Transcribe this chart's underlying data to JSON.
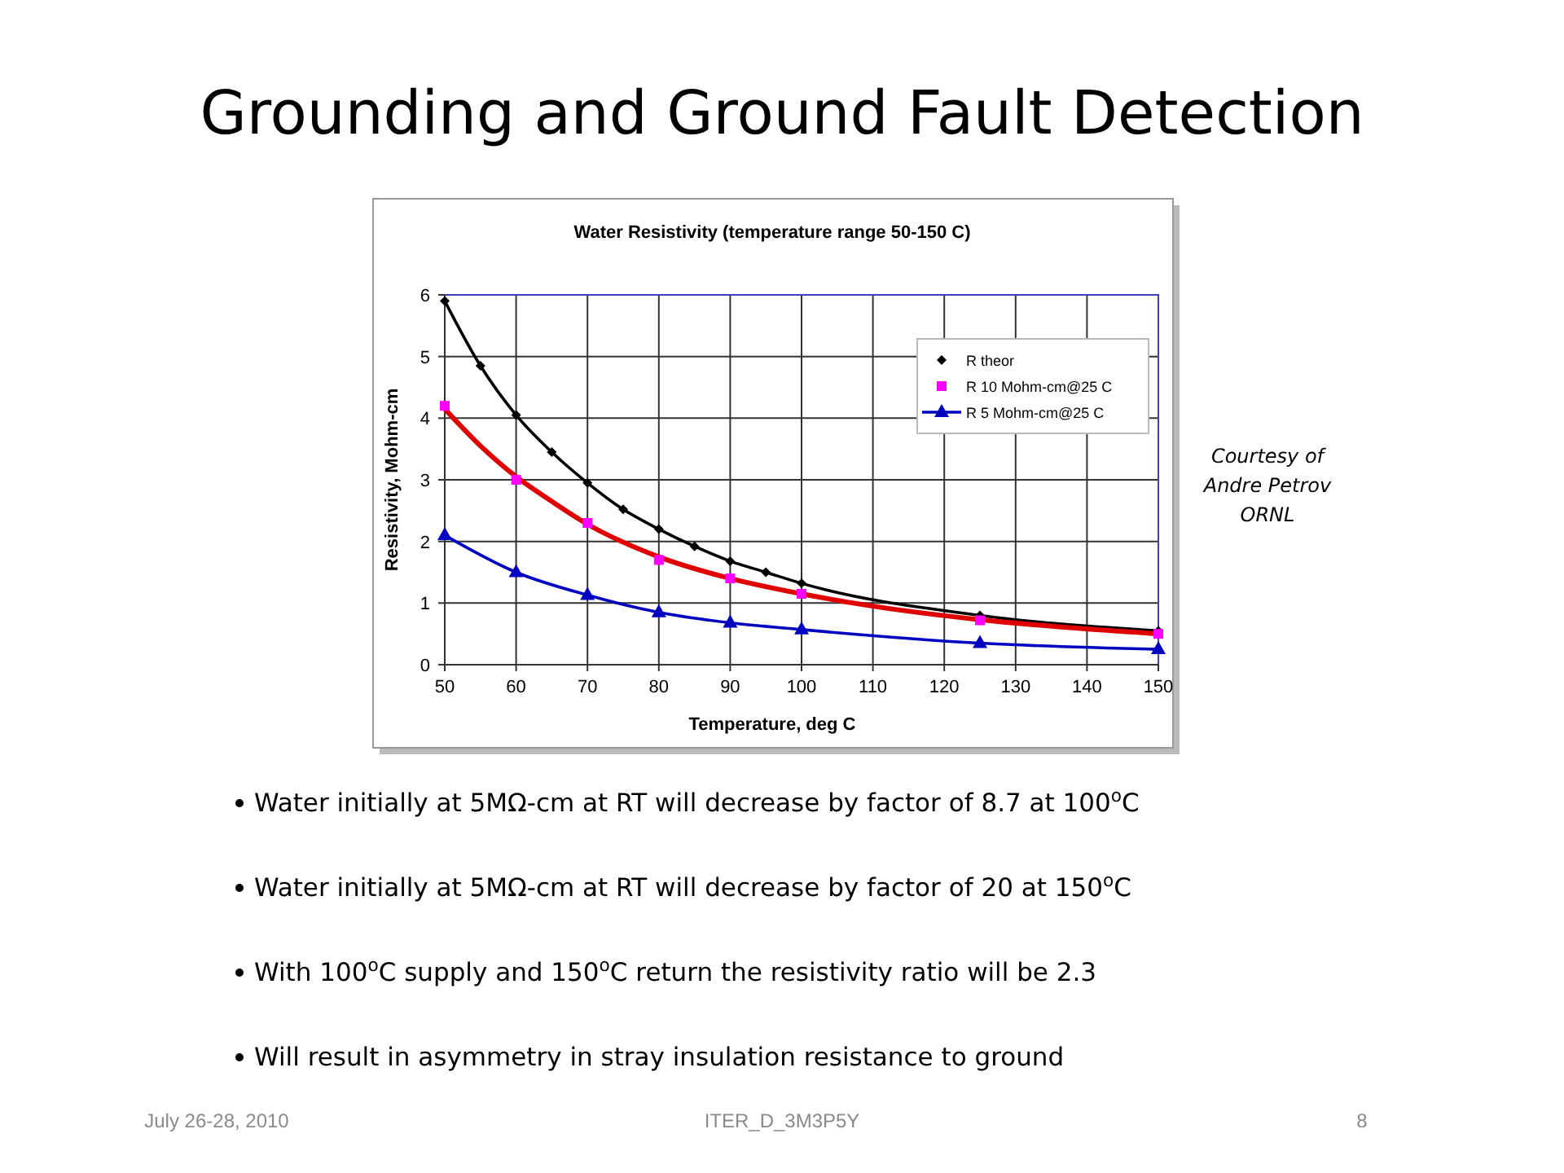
{
  "chart_data": {
    "type": "line",
    "title": "Grounding and Ground Fault Detection",
    "subtitle": "Water Resistivity (temperature range 50-150 C)",
    "xlabel": "Temperature, deg C",
    "ylabel": "Resistivity, Mohm-cm",
    "xlim": [
      50,
      150
    ],
    "xticks": [
      50,
      60,
      70,
      80,
      90,
      100,
      110,
      120,
      130,
      140,
      150
    ],
    "ylim": [
      0,
      6
    ],
    "yticks": [
      0,
      1,
      2,
      3,
      4,
      5,
      6
    ],
    "grid": true,
    "legend": "top right",
    "series": [
      {
        "name": "R theor",
        "color": "#000000",
        "marker": "diamond",
        "x": [
          50,
          55,
          60,
          65,
          70,
          75,
          80,
          85,
          90,
          95,
          100,
          125,
          150
        ],
        "values": [
          5.9,
          4.85,
          4.05,
          3.45,
          2.95,
          2.52,
          2.2,
          1.92,
          1.68,
          1.5,
          1.32,
          0.8,
          0.55
        ]
      },
      {
        "color": "#e00000",
        "marker": "none",
        "x": [
          50,
          55,
          60,
          65,
          70,
          80,
          90,
          100,
          110,
          125,
          150
        ],
        "values": [
          4.15,
          3.55,
          3.05,
          2.65,
          2.28,
          1.75,
          1.4,
          1.15,
          0.95,
          0.73,
          0.5
        ]
      },
      {
        "name": "R 10 Mohm-cm@25 C",
        "type": "scatter",
        "color": "#ff00ff",
        "marker": "square",
        "x": [
          50,
          60,
          70,
          80,
          90,
          100,
          125,
          150
        ],
        "values": [
          4.2,
          3.0,
          2.3,
          1.7,
          1.4,
          1.15,
          0.72,
          0.5
        ]
      },
      {
        "name": "R 5 Mohm-cm@25 C",
        "color": "#0000c0",
        "marker": "triangle",
        "x": [
          50,
          60,
          70,
          80,
          90,
          100,
          125,
          150
        ],
        "values": [
          2.1,
          1.5,
          1.13,
          0.85,
          0.68,
          0.57,
          0.35,
          0.25
        ]
      }
    ],
    "annotations": [
      "Courtesy of Andre Petrov ORNL",
      "Water initially at 5MΩ-cm at RT will decrease by factor of 8.7 at 100$^{o}$C",
      "Water initially at 5MΩ-cm at RT will decrease by factor of 20 at 150$^{o}$C",
      "With 100$^{o}$C supply and 150$^{o}$C return the resistivity ratio will be 2.3",
      "Will result in asymmetry in stray insulation resistance to ground",
      "July 26-28, 2010",
      "ITER_D_3M3P5Y",
      "8"
    ]
  }
}
